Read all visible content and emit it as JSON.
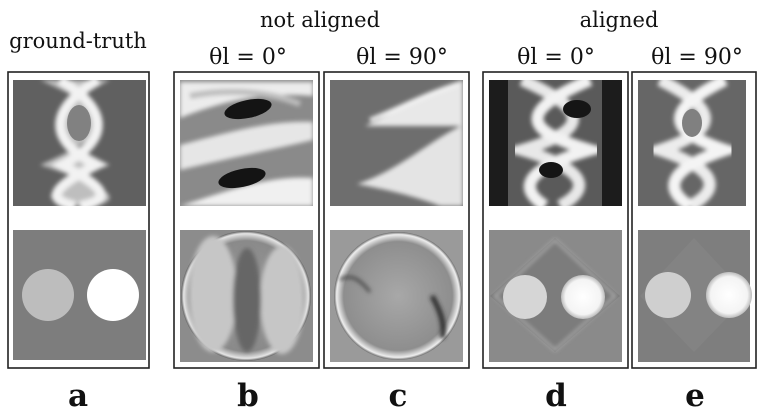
{
  "figure": {
    "group_headers": {
      "ground_truth": "ground-truth",
      "not_aligned": "not aligned",
      "aligned": "aligned"
    },
    "angle_labels": {
      "b": "θl = 0°",
      "c": "θl = 90°",
      "d": "θl = 0°",
      "e": "θl = 90°"
    },
    "panels": [
      {
        "id": "a",
        "label": "a",
        "group": "ground-truth",
        "angle": null
      },
      {
        "id": "b",
        "label": "b",
        "group": "not aligned",
        "angle": 0
      },
      {
        "id": "c",
        "label": "c",
        "group": "not aligned",
        "angle": 90
      },
      {
        "id": "d",
        "label": "d",
        "group": "aligned",
        "angle": 0
      },
      {
        "id": "e",
        "label": "e",
        "group": "aligned",
        "angle": 90
      }
    ],
    "colors": {
      "background": "#ffffff",
      "frame": "#222222",
      "sinogram_bg": "#606060",
      "recon_bg": "#7d7d7d",
      "disc_light": "#bdbdbd",
      "disc_white": "#ffffff",
      "dark_bar": "#1c1c1c"
    }
  }
}
